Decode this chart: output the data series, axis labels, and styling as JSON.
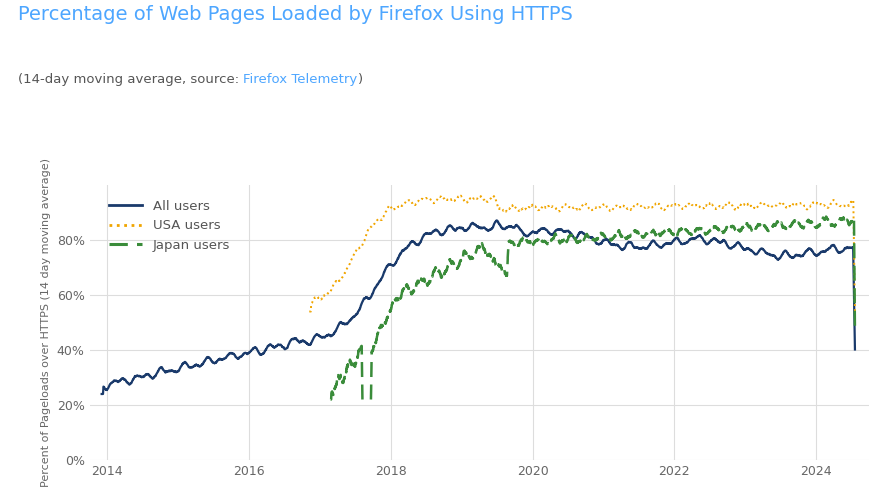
{
  "title": "Percentage of Web Pages Loaded by Firefox Using HTTPS",
  "subtitle_plain": "(14-day moving average, source: ",
  "subtitle_link": "Firefox Telemetry",
  "subtitle_end": ")",
  "ylabel": "Percent of Pageloads over HTTPS (14 day moving average)",
  "title_color": "#4da6ff",
  "subtitle_color": "#555555",
  "link_color": "#4da6ff",
  "bg_color": "#ffffff",
  "grid_color": "#dddddd",
  "all_color": "#1a3a6b",
  "usa_color": "#f0a500",
  "japan_color": "#3a8c3a",
  "ylim": [
    0,
    1.0
  ],
  "yticks": [
    0,
    0.2,
    0.4,
    0.6,
    0.8
  ],
  "ytick_labels": [
    "0%",
    "20%",
    "40%",
    "60%",
    "80%"
  ],
  "xstart": 2013.75,
  "xend": 2024.75,
  "xticks": [
    2014,
    2016,
    2018,
    2020,
    2022,
    2024
  ]
}
